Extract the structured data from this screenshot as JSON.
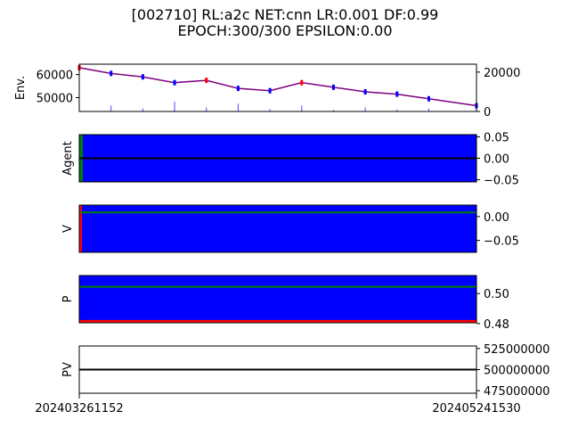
{
  "figure": {
    "title_line1": "[002710] RL:a2c NET:cnn LR:0.001 DF:0.99",
    "title_line2": "EPOCH:300/300 EPSILON:0.00"
  },
  "x_axis": {
    "tick_labels": [
      "202403261152",
      "202405241530"
    ]
  },
  "chart_data": [
    {
      "type": "line",
      "panel": "env",
      "ylabel": "Env.",
      "left_ylim": [
        44000,
        64500
      ],
      "left_ticks": [
        50000,
        60000
      ],
      "left_tick_labels": [
        "50000",
        "60000"
      ],
      "right_ylim": [
        0,
        24000
      ],
      "right_ticks": [
        0,
        20000
      ],
      "right_tick_labels": [
        "0",
        "20000"
      ],
      "x": [
        0,
        8,
        16,
        24,
        32,
        40,
        48,
        56,
        64,
        72,
        80,
        88,
        100
      ],
      "price_series": [
        63000,
        60500,
        59000,
        56500,
        57500,
        54000,
        53000,
        56500,
        54500,
        52500,
        51500,
        49500,
        46500
      ],
      "volume_series": [
        500,
        3000,
        1500,
        5000,
        2000,
        4000,
        1200,
        3000,
        800,
        2000,
        1000,
        1500,
        5000
      ],
      "colors": {
        "up": "#ff0000",
        "down": "#0000ff",
        "volume": "#0000ff",
        "line": "#800080"
      }
    },
    {
      "type": "area",
      "panel": "agent",
      "ylabel": "Agent",
      "ylim": [
        -0.055,
        0.055
      ],
      "right_ticks": [
        0.05,
        0.0,
        -0.05
      ],
      "right_tick_labels": [
        "0.05",
        "0.00",
        "−0.05"
      ],
      "line_value": 0.0,
      "colors": {
        "fill": "#0000ff",
        "start_marker": "#008000",
        "line": "#000000"
      }
    },
    {
      "type": "area",
      "panel": "v",
      "ylabel": "V",
      "ylim": [
        -0.075,
        0.024
      ],
      "right_ticks": [
        0.0,
        -0.05
      ],
      "right_tick_labels": [
        "0.00",
        "−0.05"
      ],
      "line_value": 0.0085,
      "colors": {
        "fill": "#0000ff",
        "line": "#008000",
        "start_marker": "#ff0000"
      }
    },
    {
      "type": "area",
      "panel": "p",
      "ylabel": "P",
      "ylim": [
        0.4805,
        0.512
      ],
      "right_ticks": [
        0.5,
        0.48
      ],
      "right_tick_labels": [
        "0.50",
        "0.48"
      ],
      "upper_line": 0.5045,
      "lower_line": 0.4815,
      "colors": {
        "fill": "#0000ff",
        "upper": "#008000",
        "lower": "#ff0000"
      }
    },
    {
      "type": "line",
      "panel": "pv",
      "ylabel": "PV",
      "ylim": [
        472000000,
        528000000
      ],
      "right_ticks": [
        525000000,
        500000000,
        475000000
      ],
      "right_tick_labels": [
        "525000000",
        "500000000",
        "475000000"
      ],
      "line_value": 500000000,
      "colors": {
        "line": "#000000"
      }
    }
  ]
}
